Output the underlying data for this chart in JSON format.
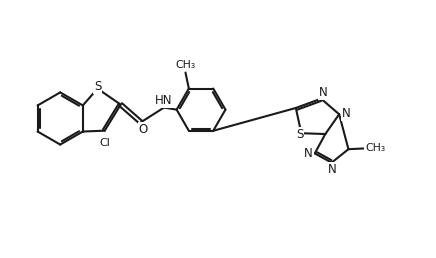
{
  "bg_color": "#ffffff",
  "line_color": "#1a1a1a",
  "line_width": 1.5,
  "figsize": [
    4.36,
    2.58
  ],
  "dpi": 100,
  "xlim": [
    0,
    10
  ],
  "ylim": [
    0,
    6
  ]
}
